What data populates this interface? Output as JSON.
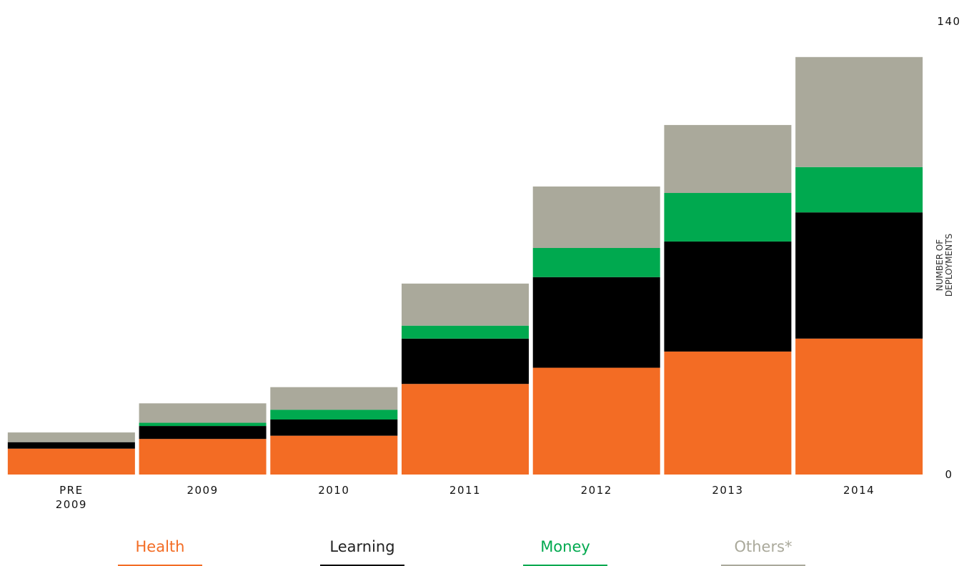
{
  "chart_data": {
    "type": "stacked_bar",
    "categories": [
      "PRE 2009",
      "2009",
      "2010",
      "2011",
      "2012",
      "2013",
      "2014"
    ],
    "series": [
      {
        "name": "Health",
        "color": "#f36c24",
        "values": [
          8,
          11,
          12,
          28,
          33,
          38,
          42
        ]
      },
      {
        "name": "Learning",
        "color": "#000000",
        "values": [
          2,
          4,
          5,
          14,
          28,
          34,
          39
        ]
      },
      {
        "name": "Money",
        "color": "#00a94f",
        "values": [
          0,
          1,
          3,
          4,
          9,
          15,
          14
        ]
      },
      {
        "name": "Others*",
        "color": "#aaa99b",
        "values": [
          3,
          6,
          7,
          13,
          19,
          21,
          34
        ]
      }
    ],
    "ylabel": "NUMBER OF DEPLOYMENTS",
    "ylim": [
      0,
      140
    ],
    "yticks": [
      0,
      140
    ],
    "grid": false
  }
}
